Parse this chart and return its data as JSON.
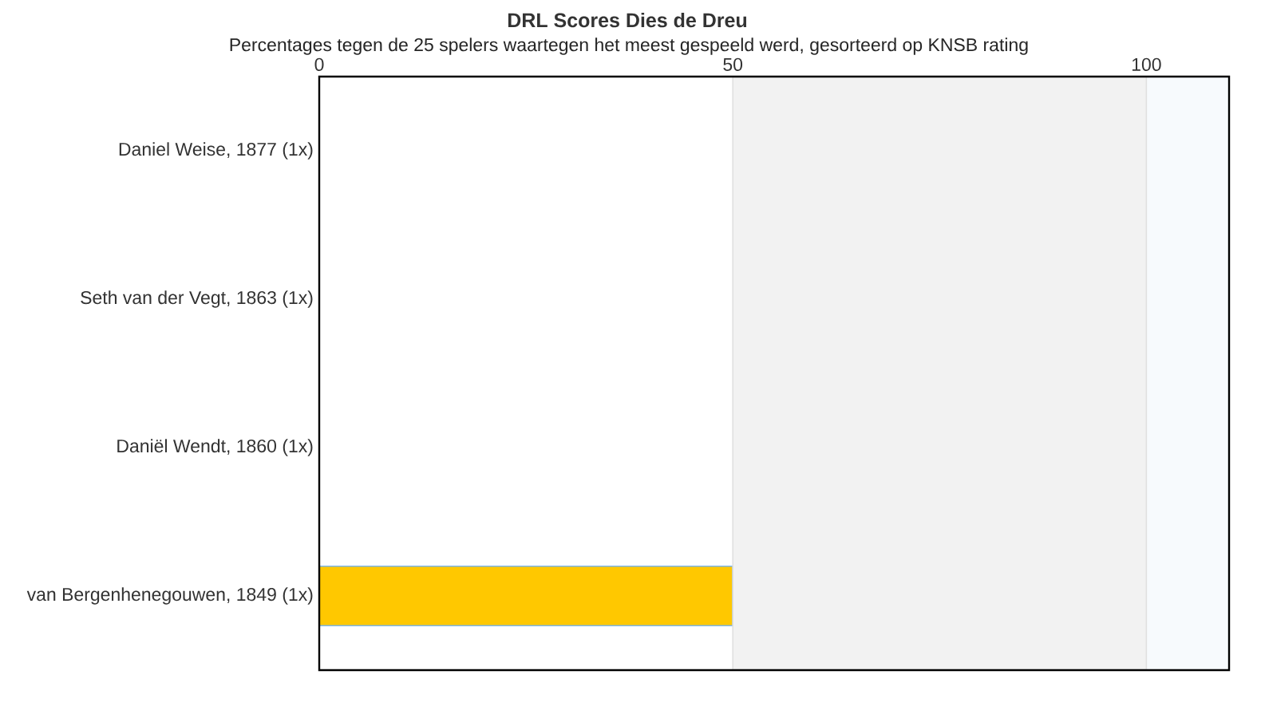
{
  "chart_data": {
    "type": "bar",
    "orientation": "horizontal",
    "title": "DRL Scores Dies de Dreu",
    "subtitle": "Percentages tegen de 25 spelers waartegen het meest gespeeld werd, gesorteerd op KNSB rating",
    "categories": [
      "Daniel Weise, 1877 (1x)",
      "Seth van der Vegt, 1863 (1x)",
      "Daniël Wendt, 1860 (1x)",
      "van Bergenhenegouwen, 1849 (1x)"
    ],
    "values": [
      0,
      0,
      0,
      50
    ],
    "color": "#ffc800",
    "xlim": [
      0,
      110
    ],
    "xticks": [
      0,
      50,
      100
    ],
    "grid": "x",
    "bands": [
      {
        "axis": "x",
        "from": 50,
        "to": 100,
        "color": "#f2f2f2"
      },
      {
        "axis": "x",
        "from": 100,
        "to": 110,
        "color": "#f7fafd"
      }
    ]
  }
}
